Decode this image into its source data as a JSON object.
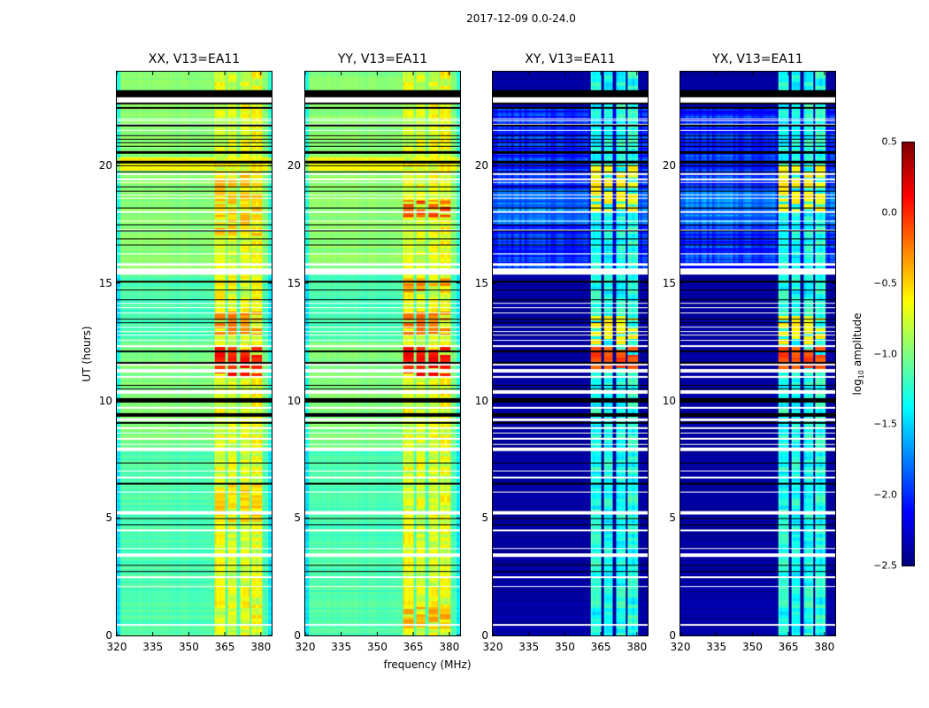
{
  "figure_title": "2017-12-09 0.0-24.0",
  "chart_data": {
    "type": "heatmap",
    "xlabel": "frequency (MHz)",
    "ylabel": "UT (hours)",
    "xlim": [
      320,
      384.5
    ],
    "ylim": [
      0,
      24
    ],
    "xticks": [
      "320",
      "335",
      "350",
      "365",
      "380"
    ],
    "xtick_values": [
      320,
      335,
      350,
      365,
      380
    ],
    "yticks": [
      "0",
      "5",
      "10",
      "15",
      "20"
    ],
    "ytick_values": [
      0,
      5,
      10,
      15,
      20
    ],
    "colorbar": {
      "label_prefix": "log",
      "label_sub": "10",
      "label_suffix": " amplitude",
      "colormap": "jet",
      "range": [
        -2.5,
        0.5
      ],
      "ticks": [
        "0.5",
        "0.0",
        "−0.5",
        "−1.0",
        "−1.5",
        "−2.0",
        "−2.5"
      ],
      "tick_values": [
        0.5,
        0.0,
        -0.5,
        -1.0,
        -1.5,
        -2.0,
        -2.5
      ]
    },
    "rfi_bands_mhz": [
      [
        360.8,
        365.2
      ],
      [
        366.2,
        369.9
      ],
      [
        371.3,
        375.3
      ],
      [
        376.0,
        380.4
      ]
    ],
    "flagged_black_hours": [
      [
        22.9,
        23.2
      ],
      [
        22.6,
        22.68
      ],
      [
        22.42,
        22.48
      ],
      [
        21.68,
        21.74
      ],
      [
        21.25,
        21.3
      ],
      [
        21.1,
        21.15
      ],
      [
        20.95,
        21.0
      ],
      [
        20.8,
        20.85
      ],
      [
        20.5,
        20.62
      ],
      [
        20.1,
        20.22
      ],
      [
        19.98,
        20.02
      ],
      [
        19.7,
        19.74
      ],
      [
        19.08,
        19.12
      ],
      [
        18.88,
        18.92
      ],
      [
        18.18,
        18.22
      ],
      [
        17.48,
        17.52
      ],
      [
        17.2,
        17.24
      ],
      [
        16.88,
        16.92
      ],
      [
        16.6,
        16.64
      ],
      [
        15.04,
        15.08
      ],
      [
        14.68,
        14.72
      ],
      [
        14.28,
        14.32
      ],
      [
        13.43,
        13.47
      ],
      [
        13.28,
        13.32
      ],
      [
        12.05,
        12.15
      ],
      [
        11.58,
        11.63
      ],
      [
        10.63,
        10.68
      ],
      [
        10.48,
        10.52
      ],
      [
        9.9,
        10.1
      ],
      [
        9.3,
        9.45
      ],
      [
        9.0,
        9.1
      ],
      [
        7.33,
        7.38
      ],
      [
        6.44,
        6.48
      ],
      [
        4.97,
        5.01
      ],
      [
        4.71,
        4.75
      ],
      [
        2.95,
        2.99
      ],
      [
        2.72,
        2.76
      ]
    ],
    "flagged_white_hours": [
      [
        22.7,
        22.9
      ],
      [
        21.98,
        22.02
      ],
      [
        21.88,
        21.92
      ],
      [
        21.76,
        21.8
      ],
      [
        21.48,
        21.53
      ],
      [
        19.62,
        19.68
      ],
      [
        19.38,
        19.44
      ],
      [
        19.25,
        19.3
      ],
      [
        18.75,
        18.78
      ],
      [
        18.58,
        18.62
      ],
      [
        18.0,
        18.06
      ],
      [
        17.62,
        17.66
      ],
      [
        17.22,
        17.26
      ],
      [
        16.23,
        16.27
      ],
      [
        15.72,
        15.86
      ],
      [
        15.38,
        15.62
      ],
      [
        14.13,
        14.17
      ],
      [
        13.92,
        13.96
      ],
      [
        13.72,
        13.76
      ],
      [
        13.1,
        13.14
      ],
      [
        12.93,
        12.97
      ],
      [
        12.78,
        12.82
      ],
      [
        12.55,
        12.6
      ],
      [
        12.3,
        12.35
      ],
      [
        11.5,
        11.56
      ],
      [
        11.2,
        11.35
      ],
      [
        10.98,
        11.03
      ],
      [
        10.3,
        10.45
      ],
      [
        9.65,
        9.72
      ],
      [
        9.12,
        9.25
      ],
      [
        8.8,
        8.86
      ],
      [
        8.6,
        8.65
      ],
      [
        8.35,
        8.4
      ],
      [
        8.1,
        8.15
      ],
      [
        7.85,
        8.0
      ],
      [
        6.97,
        7.01
      ],
      [
        6.68,
        6.76
      ],
      [
        6.08,
        6.12
      ],
      [
        5.15,
        5.3
      ],
      [
        4.45,
        4.49
      ],
      [
        3.68,
        3.72
      ],
      [
        3.35,
        3.5
      ],
      [
        2.46,
        2.5
      ],
      [
        2.05,
        2.09
      ],
      [
        0.43,
        0.47
      ]
    ],
    "panels": [
      {
        "title": "XX, V13=EA11",
        "kind": "parallel",
        "background_level": -1.15,
        "band_level": -0.7,
        "hot_spots": [
          {
            "hours": [
              11,
              12.3
            ],
            "level": 0.15
          },
          {
            "hours": [
              12.8,
              13.8
            ],
            "level": -0.15
          },
          {
            "hours": [
              4.8,
              6.5
            ],
            "level": -0.4
          },
          {
            "hours": [
              17,
              19.7
            ],
            "level": -0.35
          },
          {
            "hours": [
              14.3,
              15.3
            ],
            "level": -0.5
          }
        ]
      },
      {
        "title": "YY, V13=EA11",
        "kind": "parallel",
        "background_level": -1.15,
        "band_level": -0.7,
        "hot_spots": [
          {
            "hours": [
              11,
              12.3
            ],
            "level": 0.2
          },
          {
            "hours": [
              12.8,
              13.8
            ],
            "level": -0.1
          },
          {
            "hours": [
              0.3,
              1.2
            ],
            "level": -0.3
          },
          {
            "hours": [
              17.8,
              18.5
            ],
            "level": 0.0
          },
          {
            "hours": [
              14.6,
              15.2
            ],
            "level": -0.2
          }
        ]
      },
      {
        "title": "XY, V13=EA11",
        "kind": "cross",
        "background_level": -2.4,
        "band_level": -1.3,
        "hot_spots": [
          {
            "hours": [
              11.2,
              12.3
            ],
            "level": 0.0
          },
          {
            "hours": [
              12.4,
              13.6
            ],
            "level": -0.5
          },
          {
            "hours": [
              18,
              20
            ],
            "level": -0.5
          }
        ]
      },
      {
        "title": "YX, V13=EA11",
        "kind": "cross",
        "background_level": -2.4,
        "band_level": -1.3,
        "hot_spots": [
          {
            "hours": [
              11.2,
              12.3
            ],
            "level": 0.0
          },
          {
            "hours": [
              12.4,
              13.6
            ],
            "level": -0.5
          },
          {
            "hours": [
              18,
              20
            ],
            "level": -0.5
          }
        ]
      }
    ]
  }
}
